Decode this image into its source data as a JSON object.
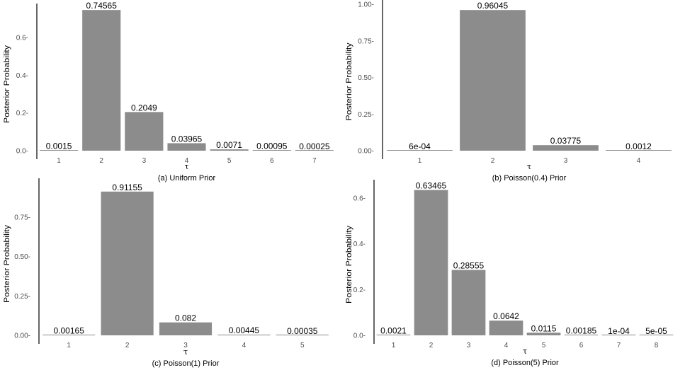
{
  "chart_data": [
    {
      "type": "bar",
      "categories": [
        "1",
        "2",
        "3",
        "4",
        "5",
        "6",
        "7"
      ],
      "values": [
        0.0015,
        0.74565,
        0.2049,
        0.03965,
        0.0071,
        0.00095,
        0.00025
      ],
      "value_labels": [
        "0.0015",
        "0.74565",
        "0.2049",
        "0.03965",
        "0.0071",
        "0.00095",
        "0.00025"
      ],
      "yticks": [
        0.0,
        0.2,
        0.4,
        0.6
      ],
      "ytick_labels": [
        "0.0-",
        "0.2-",
        "0.4-",
        "0.6-"
      ],
      "ylim": [
        0,
        0.75
      ],
      "xlabel": "τ",
      "ylabel": "Posterior Probability",
      "caption": "(a) Uniform Prior",
      "bar_color": "#8c8c8c"
    },
    {
      "type": "bar",
      "categories": [
        "1",
        "2",
        "3",
        "4"
      ],
      "values": [
        0.0006,
        0.96045,
        0.03775,
        0.0012
      ],
      "value_labels": [
        "6e-04",
        "0.96045",
        "0.03775",
        "0.0012"
      ],
      "yticks": [
        0.0,
        0.25,
        0.5,
        0.75,
        1.0
      ],
      "ytick_labels": [
        "0.00-",
        "0.25-",
        "0.50-",
        "0.75-",
        "1.00-"
      ],
      "ylim": [
        0,
        1.0
      ],
      "xlabel": "τ",
      "ylabel": "Posterior Probability",
      "caption": "(b) Poisson(0.4)  Prior",
      "bar_color": "#8c8c8c"
    },
    {
      "type": "bar",
      "categories": [
        "1",
        "2",
        "3",
        "4",
        "5"
      ],
      "values": [
        0.00165,
        0.91155,
        0.082,
        0.00445,
        0.00035
      ],
      "value_labels": [
        "0.00165",
        "0.91155",
        "0.082",
        "0.00445",
        "0.00035"
      ],
      "yticks": [
        0.0,
        0.25,
        0.5,
        0.75
      ],
      "ytick_labels": [
        "0.00-",
        "0.25-",
        "0.50-",
        "0.75-"
      ],
      "ylim": [
        0,
        0.96
      ],
      "xlabel": "τ",
      "ylabel": "Posterior Probability",
      "caption": "(c) Poisson(1) Prior",
      "bar_color": "#8c8c8c"
    },
    {
      "type": "bar",
      "categories": [
        "1",
        "2",
        "3",
        "4",
        "5",
        "6",
        "7",
        "8"
      ],
      "values": [
        0.0021,
        0.63465,
        0.28555,
        0.0642,
        0.0115,
        0.00185,
        0.0001,
        5e-05
      ],
      "value_labels": [
        "0.0021",
        "0.63465",
        "0.28555",
        "0.0642",
        "0.0115",
        "0.00185",
        "1e-04",
        "5e-05"
      ],
      "yticks": [
        0.0,
        0.2,
        0.4,
        0.6
      ],
      "ytick_labels": [
        "0.0-",
        "0.2-",
        "0.4-",
        "0.6-"
      ],
      "ylim": [
        0,
        0.655
      ],
      "xlabel": "τ",
      "ylabel": "Posterior Probability",
      "caption": "(d) Poisson(5) Prior",
      "bar_color": "#8c8c8c"
    }
  ]
}
